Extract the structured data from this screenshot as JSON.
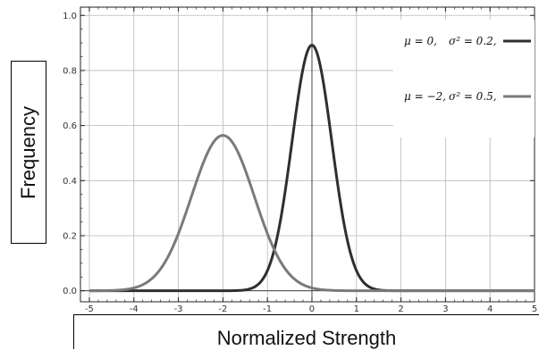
{
  "chart_data": {
    "type": "line",
    "xlabel": "Normalized Strength",
    "ylabel": "Frequency",
    "xlim": [
      -5.2,
      5.0
    ],
    "ylim": [
      -0.04,
      1.03
    ],
    "grid": true,
    "legend_position": "top-right",
    "x_ticks": [
      "-5",
      "-4",
      "-3",
      "-2",
      "-1",
      "0",
      "1",
      "2",
      "3",
      "4",
      "5"
    ],
    "y_ticks": [
      "0.0",
      "0.2",
      "0.4",
      "0.6",
      "0.8",
      "1.0"
    ],
    "series": [
      {
        "name_mu": "μ = 0,",
        "name_sigma": "σ² = 0.2,",
        "mu": 0,
        "sigma2": 0.2,
        "peak": 0.892,
        "color": "#2f2f2f"
      },
      {
        "name_mu": "μ = −2,",
        "name_sigma": "σ² = 0.5,",
        "mu": -2,
        "sigma2": 0.5,
        "peak": 0.564,
        "color": "#7a7a7a"
      }
    ]
  }
}
